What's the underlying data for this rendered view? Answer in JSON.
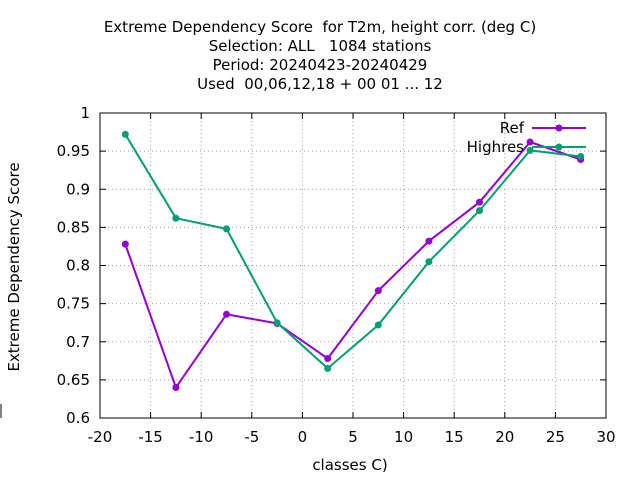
{
  "chart_data": {
    "type": "line",
    "title_lines": [
      "Extreme Dependency Score  for T2m, height corr. (deg C)",
      "Selection: ALL   1084 stations",
      "Period: 20240423-20240429",
      "Used  00,06,12,18 + 00 01 ... 12"
    ],
    "xlabel": "classes C)",
    "ylabel": "Extreme Dependency Score",
    "xlim": [
      -20,
      30
    ],
    "ylim": [
      0.6,
      1.0
    ],
    "xticks": [
      "-20",
      "-15",
      "-10",
      "-5",
      "0",
      "5",
      "10",
      "15",
      "20",
      "25",
      "30"
    ],
    "yticks": [
      "0.6",
      "0.65",
      "0.7",
      "0.75",
      "0.8",
      "0.85",
      "0.9",
      "0.95",
      "1"
    ],
    "grid": true,
    "legend_position": "top-right",
    "x": [
      -17.5,
      -12.5,
      -7.5,
      -2.5,
      2.5,
      7.5,
      12.5,
      17.5,
      22.5,
      27.5
    ],
    "series": [
      {
        "name": "Ref",
        "color": "#9400d3",
        "values": [
          0.828,
          0.64,
          0.736,
          0.724,
          0.678,
          0.767,
          0.832,
          0.883,
          0.962,
          0.939
        ]
      },
      {
        "name": "Highres",
        "color": "#009e73",
        "values": [
          0.972,
          0.862,
          0.848,
          0.725,
          0.665,
          0.722,
          0.805,
          0.872,
          0.951,
          0.943
        ]
      }
    ]
  }
}
